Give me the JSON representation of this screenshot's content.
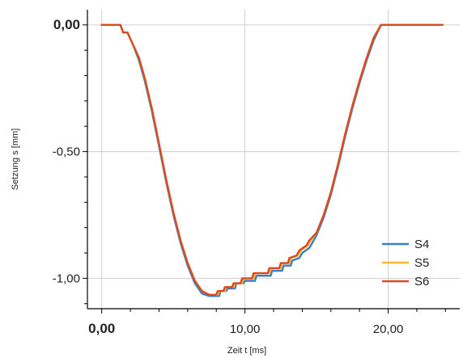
{
  "chart_data": {
    "type": "line",
    "xlabel": "Zeit t [ms]",
    "ylabel": "Setzung s [mm]",
    "xlim": [
      -1.0,
      25.0
    ],
    "ylim": [
      -1.12,
      0.06
    ],
    "grid": true,
    "legend_position": "bottom-right",
    "x_ticks": [
      {
        "value": 0,
        "label": "0,00",
        "bold": true
      },
      {
        "value": 10,
        "label": "10,00",
        "bold": false
      },
      {
        "value": 20,
        "label": "20,00",
        "bold": false
      }
    ],
    "y_ticks": [
      {
        "value": 0,
        "label": "0,00",
        "bold": true
      },
      {
        "value": -0.5,
        "label": "-0,50",
        "bold": false
      },
      {
        "value": -1.0,
        "label": "-1,00",
        "bold": false
      }
    ],
    "series": [
      {
        "name": "S4",
        "color": "#3a7fc4",
        "points": [
          [
            0,
            0
          ],
          [
            1.3,
            0
          ],
          [
            1.5,
            -0.03
          ],
          [
            1.8,
            -0.03
          ],
          [
            2.2,
            -0.08
          ],
          [
            2.6,
            -0.14
          ],
          [
            3.0,
            -0.22
          ],
          [
            3.5,
            -0.34
          ],
          [
            4.0,
            -0.48
          ],
          [
            4.5,
            -0.62
          ],
          [
            5.0,
            -0.75
          ],
          [
            5.5,
            -0.86
          ],
          [
            6.0,
            -0.95
          ],
          [
            6.5,
            -1.02
          ],
          [
            7.0,
            -1.06
          ],
          [
            7.5,
            -1.07
          ],
          [
            8.2,
            -1.07
          ],
          [
            8.3,
            -1.05
          ],
          [
            8.7,
            -1.05
          ],
          [
            8.8,
            -1.04
          ],
          [
            9.3,
            -1.04
          ],
          [
            9.4,
            -1.02
          ],
          [
            9.9,
            -1.02
          ],
          [
            10.0,
            -1.01
          ],
          [
            10.7,
            -1.01
          ],
          [
            10.8,
            -0.99
          ],
          [
            11.8,
            -0.99
          ],
          [
            11.9,
            -0.97
          ],
          [
            12.6,
            -0.97
          ],
          [
            12.7,
            -0.95
          ],
          [
            13.2,
            -0.95
          ],
          [
            13.3,
            -0.93
          ],
          [
            13.8,
            -0.92
          ],
          [
            14.0,
            -0.9
          ],
          [
            14.5,
            -0.88
          ],
          [
            14.7,
            -0.86
          ],
          [
            15.0,
            -0.83
          ],
          [
            15.5,
            -0.76
          ],
          [
            16.0,
            -0.67
          ],
          [
            16.5,
            -0.56
          ],
          [
            17.0,
            -0.44
          ],
          [
            17.5,
            -0.33
          ],
          [
            18.0,
            -0.23
          ],
          [
            18.5,
            -0.14
          ],
          [
            19.0,
            -0.06
          ],
          [
            19.5,
            0
          ],
          [
            23.8,
            0
          ]
        ]
      },
      {
        "name": "S5",
        "color": "#f2b830",
        "points": [
          [
            0,
            0
          ],
          [
            1.3,
            0
          ],
          [
            1.5,
            -0.03
          ],
          [
            1.8,
            -0.03
          ],
          [
            2.2,
            -0.08
          ],
          [
            2.6,
            -0.13
          ],
          [
            3.0,
            -0.21
          ],
          [
            3.5,
            -0.33
          ],
          [
            4.0,
            -0.47
          ],
          [
            4.5,
            -0.61
          ],
          [
            5.0,
            -0.74
          ],
          [
            5.5,
            -0.85
          ],
          [
            6.0,
            -0.94
          ],
          [
            6.5,
            -1.01
          ],
          [
            7.0,
            -1.05
          ],
          [
            7.5,
            -1.065
          ],
          [
            8.1,
            -1.065
          ],
          [
            8.2,
            -1.05
          ],
          [
            8.6,
            -1.05
          ],
          [
            8.7,
            -1.035
          ],
          [
            9.2,
            -1.035
          ],
          [
            9.3,
            -1.02
          ],
          [
            9.8,
            -1.02
          ],
          [
            9.9,
            -1.0
          ],
          [
            10.6,
            -1.0
          ],
          [
            10.7,
            -0.98
          ],
          [
            11.7,
            -0.98
          ],
          [
            11.8,
            -0.96
          ],
          [
            12.5,
            -0.96
          ],
          [
            12.6,
            -0.94
          ],
          [
            13.1,
            -0.94
          ],
          [
            13.2,
            -0.92
          ],
          [
            13.7,
            -0.91
          ],
          [
            13.9,
            -0.89
          ],
          [
            14.4,
            -0.87
          ],
          [
            14.6,
            -0.85
          ],
          [
            15.0,
            -0.82
          ],
          [
            15.5,
            -0.75
          ],
          [
            16.0,
            -0.66
          ],
          [
            16.5,
            -0.55
          ],
          [
            17.0,
            -0.43
          ],
          [
            17.5,
            -0.32
          ],
          [
            18.0,
            -0.22
          ],
          [
            18.5,
            -0.13
          ],
          [
            19.0,
            -0.05
          ],
          [
            19.5,
            0
          ],
          [
            23.8,
            0
          ]
        ]
      },
      {
        "name": "S6",
        "color": "#dc4a22",
        "points": [
          [
            0,
            0
          ],
          [
            1.3,
            0
          ],
          [
            1.5,
            -0.03
          ],
          [
            1.8,
            -0.03
          ],
          [
            2.2,
            -0.08
          ],
          [
            2.6,
            -0.13
          ],
          [
            3.0,
            -0.21
          ],
          [
            3.5,
            -0.33
          ],
          [
            4.0,
            -0.47
          ],
          [
            4.5,
            -0.61
          ],
          [
            5.0,
            -0.74
          ],
          [
            5.5,
            -0.85
          ],
          [
            6.0,
            -0.94
          ],
          [
            6.5,
            -1.01
          ],
          [
            7.0,
            -1.05
          ],
          [
            7.5,
            -1.065
          ],
          [
            8.0,
            -1.065
          ],
          [
            8.1,
            -1.05
          ],
          [
            8.5,
            -1.05
          ],
          [
            8.6,
            -1.035
          ],
          [
            9.1,
            -1.035
          ],
          [
            9.2,
            -1.02
          ],
          [
            9.7,
            -1.02
          ],
          [
            9.8,
            -1.0
          ],
          [
            10.5,
            -1.0
          ],
          [
            10.6,
            -0.98
          ],
          [
            11.6,
            -0.98
          ],
          [
            11.7,
            -0.96
          ],
          [
            12.4,
            -0.96
          ],
          [
            12.5,
            -0.94
          ],
          [
            13.0,
            -0.94
          ],
          [
            13.1,
            -0.92
          ],
          [
            13.6,
            -0.91
          ],
          [
            13.8,
            -0.89
          ],
          [
            14.3,
            -0.87
          ],
          [
            14.5,
            -0.85
          ],
          [
            15.0,
            -0.82
          ],
          [
            15.5,
            -0.75
          ],
          [
            16.0,
            -0.66
          ],
          [
            16.5,
            -0.55
          ],
          [
            17.0,
            -0.43
          ],
          [
            17.5,
            -0.32
          ],
          [
            18.0,
            -0.22
          ],
          [
            18.5,
            -0.13
          ],
          [
            19.0,
            -0.05
          ],
          [
            19.5,
            0
          ],
          [
            23.8,
            0
          ]
        ]
      }
    ]
  }
}
